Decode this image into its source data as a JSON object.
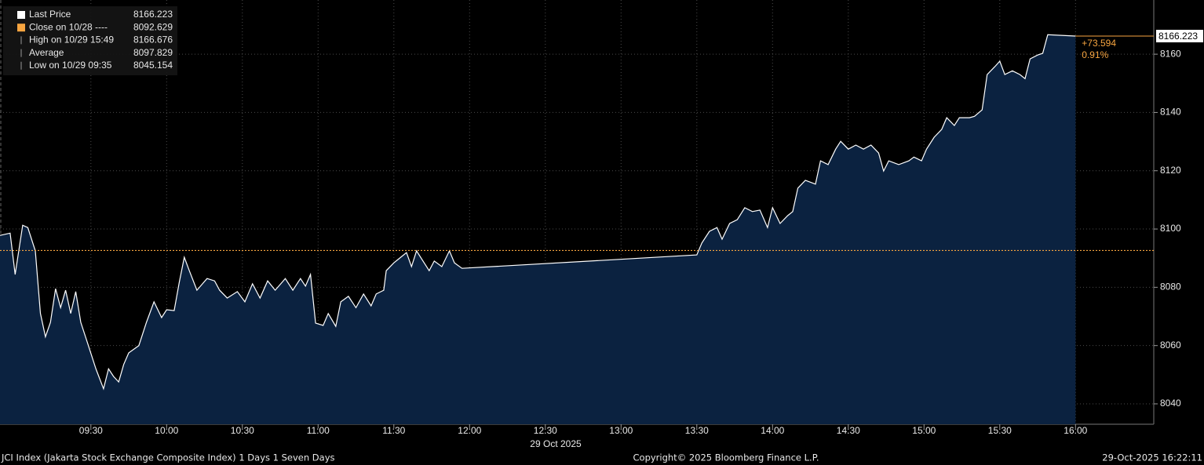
{
  "chart_data": {
    "type": "area",
    "series": [
      {
        "name": "Last Price",
        "color": "#ffffff",
        "fill": "#0b2240",
        "x": [
          "08:54",
          "08:58",
          "09:00",
          "09:03",
          "09:05",
          "09:08",
          "09:10",
          "09:12",
          "09:14",
          "09:16",
          "09:18",
          "09:20",
          "09:22",
          "09:24",
          "09:26",
          "09:29",
          "09:32",
          "09:35",
          "09:37",
          "09:39",
          "09:41",
          "09:43",
          "09:45",
          "09:49",
          "09:52",
          "09:55",
          "09:58",
          "10:00",
          "10:03",
          "10:05",
          "10:07",
          "10:09",
          "10:12",
          "10:16",
          "10:19",
          "10:21",
          "10:24",
          "10:28",
          "10:31",
          "10:34",
          "10:37",
          "10:40",
          "10:43",
          "10:47",
          "10:50",
          "10:53",
          "10:55",
          "10:57",
          "10:59",
          "11:02",
          "11:04",
          "11:07",
          "11:09",
          "11:12",
          "11:15",
          "11:18",
          "11:21",
          "11:23",
          "11:26",
          "11:27",
          "11:30",
          "11:32",
          "11:35",
          "11:37",
          "11:39",
          "11:42",
          "11:44",
          "11:46",
          "11:49",
          "11:52",
          "11:54",
          "11:57",
          "13:30",
          "13:32",
          "13:35",
          "13:38",
          "13:40",
          "13:43",
          "13:46",
          "13:49",
          "13:52",
          "13:55",
          "13:58",
          "14:00",
          "14:03",
          "14:06",
          "14:08",
          "14:10",
          "14:13",
          "14:17",
          "14:19",
          "14:22",
          "14:25",
          "14:27",
          "14:30",
          "14:33",
          "14:36",
          "14:39",
          "14:42",
          "14:44",
          "14:46",
          "14:50",
          "14:54",
          "14:56",
          "14:59",
          "15:01",
          "15:04",
          "15:07",
          "15:09",
          "15:12",
          "15:14",
          "15:18",
          "15:20",
          "15:23",
          "15:25",
          "15:28",
          "15:30",
          "15:32",
          "15:35",
          "15:38",
          "15:40",
          "15:42",
          "15:45",
          "15:47",
          "15:49",
          "16:00"
        ],
        "values": [
          8097.8,
          8098.6,
          8084.4,
          8101.3,
          8100.5,
          8092.5,
          8071.0,
          8063.0,
          8068.0,
          8079.5,
          8073.0,
          8079.0,
          8071.0,
          8078.5,
          8068.0,
          8060.0,
          8052.0,
          8045.154,
          8052.0,
          8049.4,
          8047.5,
          8053.5,
          8057.5,
          8060.0,
          8068.0,
          8075.0,
          8069.6,
          8072.3,
          8072.0,
          8081.7,
          8090.3,
          8085.7,
          8079.0,
          8083.0,
          8082.2,
          8079.0,
          8076.3,
          8078.5,
          8075.0,
          8081.2,
          8076.3,
          8082.2,
          8079.0,
          8083.0,
          8079.0,
          8083.0,
          8080.4,
          8084.4,
          8067.7,
          8066.9,
          8071.0,
          8066.6,
          8075.0,
          8076.9,
          8073.0,
          8077.7,
          8073.6,
          8077.7,
          8079.0,
          8085.7,
          8088.4,
          8089.8,
          8091.9,
          8087.1,
          8092.5,
          8088.4,
          8085.7,
          8089.0,
          8087.1,
          8092.5,
          8088.4,
          8086.5,
          8091.1,
          8095.2,
          8099.2,
          8100.5,
          8096.5,
          8101.9,
          8103.2,
          8107.3,
          8106.0,
          8106.5,
          8100.5,
          8107.3,
          8101.9,
          8104.6,
          8106.0,
          8114.0,
          8116.7,
          8115.4,
          8123.4,
          8122.1,
          8127.4,
          8130.1,
          8127.4,
          8128.8,
          8127.4,
          8128.8,
          8126.1,
          8119.9,
          8123.4,
          8122.1,
          8123.4,
          8124.7,
          8123.4,
          8127.4,
          8131.5,
          8134.2,
          8138.2,
          8135.5,
          8138.2,
          8138.2,
          8138.7,
          8140.9,
          8153.0,
          8155.7,
          8157.6,
          8153.0,
          8154.3,
          8153.0,
          8151.6,
          8158.4,
          8159.7,
          8160.3,
          8166.676,
          8166.223
        ]
      }
    ],
    "close": 8092.629,
    "close_color": "#f7a540",
    "last_price": 8166.223,
    "annotations": [
      "+73.594",
      "0.91%"
    ],
    "legend": [
      {
        "label": "Last Price",
        "value": 8166.223
      },
      {
        "label": "Close on 10/28 ----",
        "value": 8092.629
      },
      {
        "label": "High on 10/29 15:49",
        "value": 8166.676
      },
      {
        "label": "Average",
        "value": 8097.829
      },
      {
        "label": "Low on 10/29 09:35",
        "value": 8045.154
      }
    ],
    "xlim": [
      "08:54",
      "16:31"
    ],
    "xticks": [
      "09:30",
      "10:00",
      "10:30",
      "11:00",
      "11:30",
      "12:00",
      "12:30",
      "13:00",
      "13:30",
      "14:00",
      "14:30",
      "15:00",
      "15:30",
      "16:00"
    ],
    "date_label": "29 Oct 2025",
    "ylim": [
      8033,
      8178.6
    ],
    "yticks": [
      8040,
      8060,
      8080,
      8100,
      8120,
      8140,
      8160
    ],
    "grid": true
  },
  "footer": {
    "left": "JCI Index (Jakarta Stock Exchange Composite Index) 1 Days 1 Seven Days",
    "center": "Copyright© 2025 Bloomberg Finance L.P.",
    "right": "29-Oct-2025 16:22:11"
  }
}
